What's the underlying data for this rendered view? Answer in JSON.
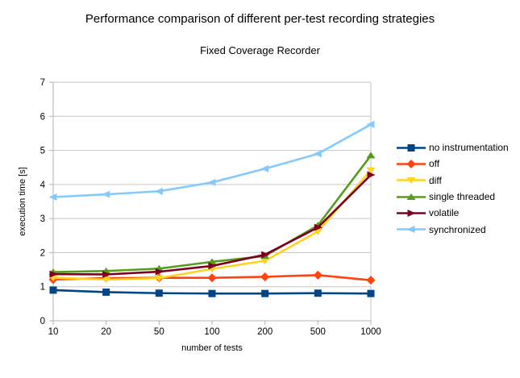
{
  "header": {
    "title": "Performance comparison of different per-test recording strategies",
    "subtitle": "Fixed Coverage Recorder"
  },
  "chart_data": {
    "type": "line",
    "title": "Performance comparison of different per-test recording strategies",
    "subtitle": "Fixed Coverage Recorder",
    "xlabel": "number of tests",
    "ylabel": "execution time [s]",
    "categories": [
      "10",
      "20",
      "50",
      "100",
      "200",
      "500",
      "1000"
    ],
    "x_axis_type": "category",
    "ylim": [
      0,
      7
    ],
    "y_ticks": [
      0,
      1,
      2,
      3,
      4,
      5,
      6,
      7
    ],
    "grid": true,
    "legend_position": "right",
    "axis_color": "#b3b3b3",
    "grid_color": "#c6c6c6",
    "text_color": "#000000",
    "series": [
      {
        "name": "no instrumentation",
        "color": "#004586",
        "marker": "square",
        "values": [
          0.9,
          0.84,
          0.81,
          0.8,
          0.8,
          0.81,
          0.8
        ]
      },
      {
        "name": "off",
        "color": "#ff420e",
        "marker": "diamond",
        "values": [
          1.21,
          1.25,
          1.26,
          1.26,
          1.29,
          1.34,
          1.19
        ]
      },
      {
        "name": "diff",
        "color": "#ffd320",
        "marker": "triangle-down",
        "values": [
          1.26,
          1.21,
          1.25,
          1.52,
          1.76,
          2.62,
          4.42
        ]
      },
      {
        "name": "single threaded",
        "color": "#579d1c",
        "marker": "triangle-up",
        "values": [
          1.43,
          1.46,
          1.53,
          1.73,
          1.9,
          2.8,
          4.85
        ]
      },
      {
        "name": "volatile",
        "color": "#7e0021",
        "marker": "arrow-right",
        "values": [
          1.37,
          1.36,
          1.44,
          1.61,
          1.94,
          2.74,
          4.28
        ]
      },
      {
        "name": "synchronized",
        "color": "#83caff",
        "marker": "arrow-left",
        "values": [
          3.63,
          3.71,
          3.8,
          4.06,
          4.46,
          4.9,
          5.76
        ]
      }
    ]
  }
}
